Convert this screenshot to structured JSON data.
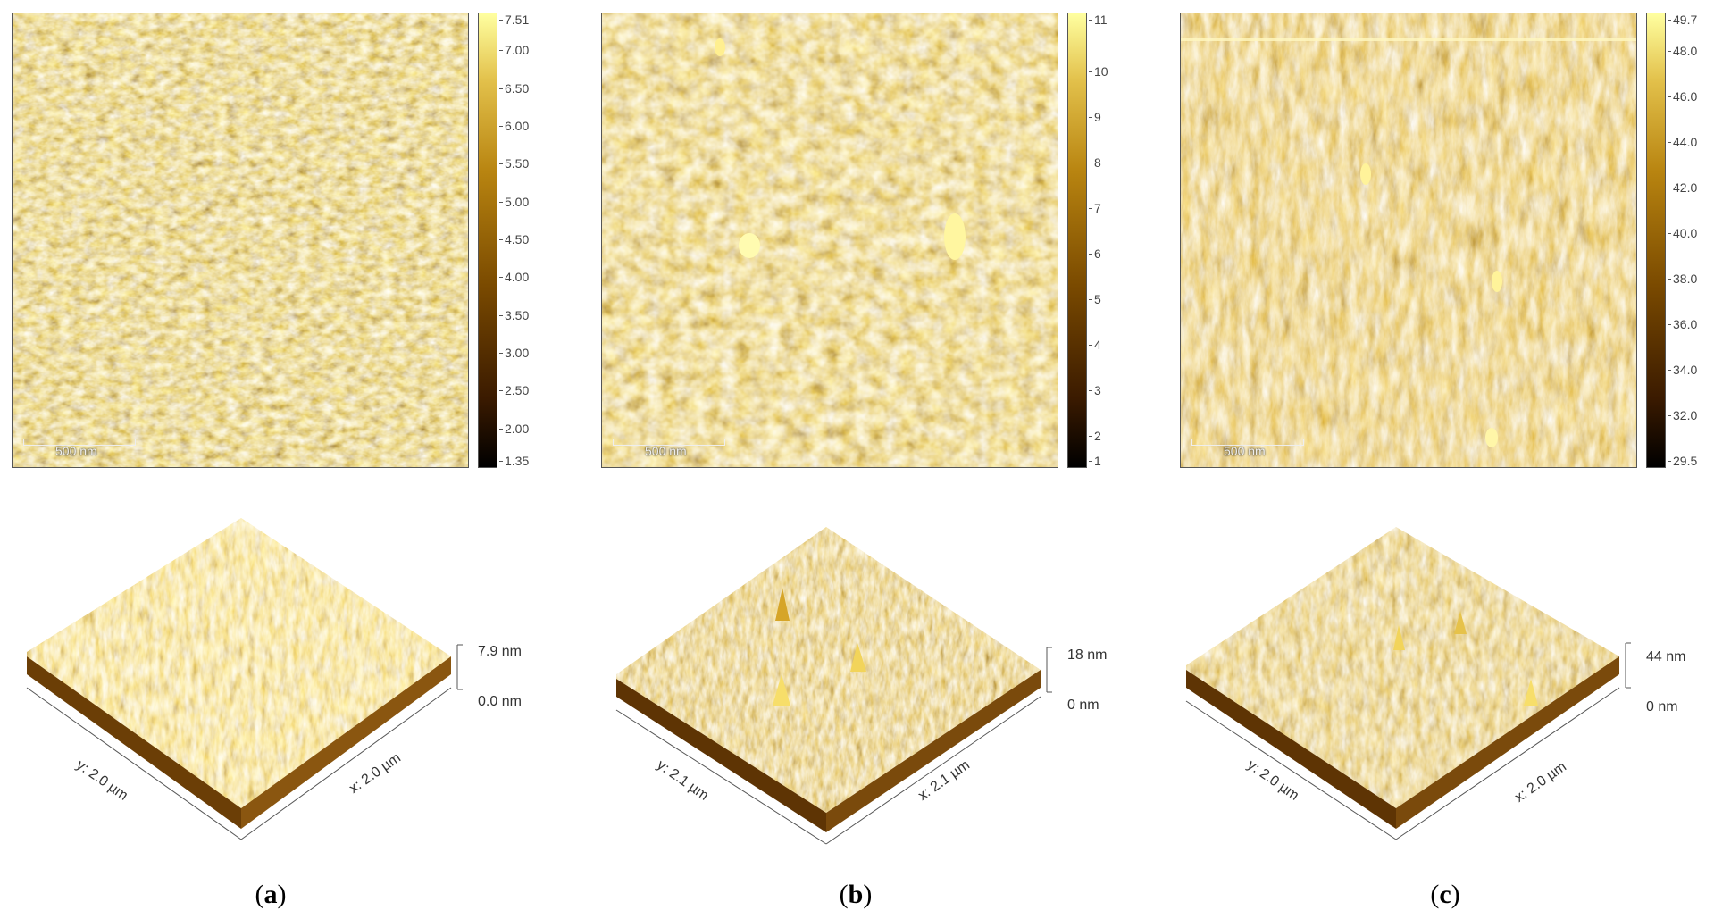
{
  "colors": {
    "afm_dark": "#1a0a00",
    "afm_mid": "#8a5a05",
    "afm_light": "#ffff99"
  },
  "panels": [
    {
      "id": "a",
      "caption_open": "(",
      "caption_letter": "a",
      "caption_close": ")",
      "scale_bar_label": "500 nm",
      "colorbar_ticks": [
        "7.51",
        "7.00",
        "6.50",
        "6.00",
        "5.50",
        "5.00",
        "4.50",
        "4.00",
        "3.50",
        "3.00",
        "2.50",
        "2.00",
        "1.35"
      ],
      "z_max_label": "7.9 nm",
      "z_min_label": "0.0 nm",
      "x_axis_label": "x: 2.0 µm",
      "y_axis_label": "y: 2.0 µm"
    },
    {
      "id": "b",
      "caption_open": "(",
      "caption_letter": "b",
      "caption_close": ")",
      "scale_bar_label": "500 nm",
      "colorbar_ticks": [
        "11",
        "10",
        "9",
        "8",
        "7",
        "6",
        "5",
        "4",
        "3",
        "2",
        "1"
      ],
      "z_max_label": "18 nm",
      "z_min_label": "0 nm",
      "x_axis_label": "x: 2.1 µm",
      "y_axis_label": "y: 2.1 µm"
    },
    {
      "id": "c",
      "caption_open": "(",
      "caption_letter": "c",
      "caption_close": ")",
      "scale_bar_label": "500 nm",
      "colorbar_ticks": [
        "49.7",
        "48.0",
        "46.0",
        "44.0",
        "42.0",
        "40.0",
        "38.0",
        "36.0",
        "34.0",
        "32.0",
        "29.5"
      ],
      "z_max_label": "44 nm",
      "z_min_label": "0 nm",
      "x_axis_label": "x: 2.0 µm",
      "y_axis_label": "y: 2.0 µm"
    }
  ]
}
